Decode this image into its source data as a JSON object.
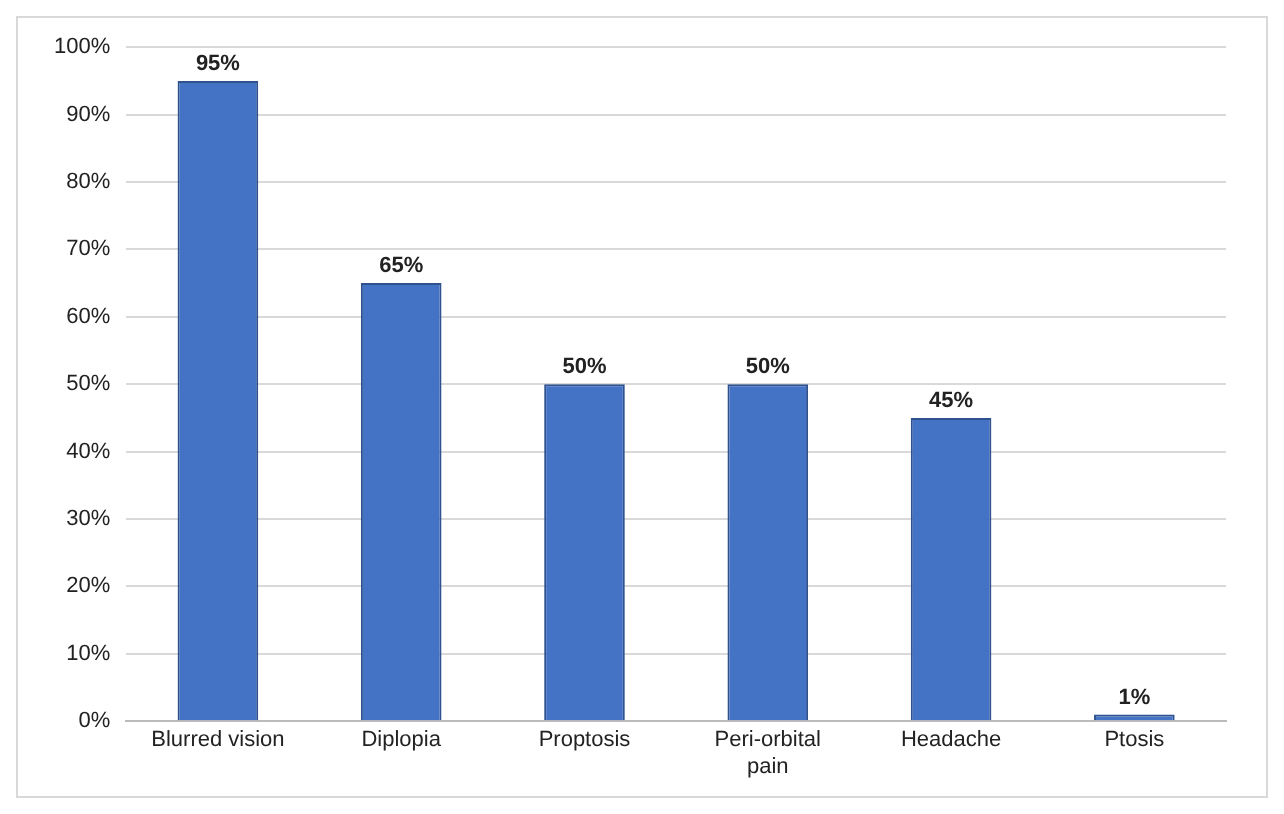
{
  "chart_data": {
    "type": "bar",
    "categories": [
      "Blurred vision",
      "Diplopia",
      "Proptosis",
      "Peri-orbital pain",
      "Headache",
      "Ptosis"
    ],
    "values": [
      95,
      65,
      50,
      50,
      45,
      1
    ],
    "value_labels": [
      "95%",
      "65%",
      "50%",
      "50%",
      "45%",
      "1%"
    ],
    "color": "#4472c4",
    "ylim": [
      0,
      100
    ],
    "yticks": [
      {
        "value": 0,
        "label": "0%"
      },
      {
        "value": 10,
        "label": "10%"
      },
      {
        "value": 20,
        "label": "20%"
      },
      {
        "value": 30,
        "label": "30%"
      },
      {
        "value": 40,
        "label": "40%"
      },
      {
        "value": 50,
        "label": "50%"
      },
      {
        "value": 60,
        "label": "60%"
      },
      {
        "value": 70,
        "label": "70%"
      },
      {
        "value": 80,
        "label": "80%"
      },
      {
        "value": 90,
        "label": "90%"
      },
      {
        "value": 100,
        "label": "100%"
      }
    ],
    "grid": "y",
    "legend": false
  }
}
